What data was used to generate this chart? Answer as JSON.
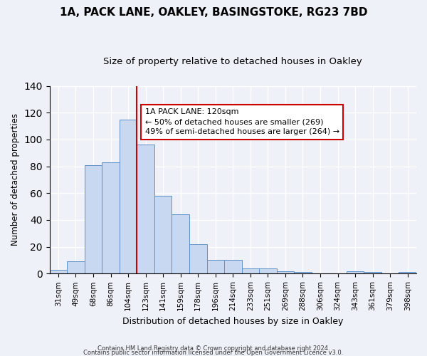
{
  "title": "1A, PACK LANE, OAKLEY, BASINGSTOKE, RG23 7BD",
  "subtitle": "Size of property relative to detached houses in Oakley",
  "xlabel": "Distribution of detached houses by size in Oakley",
  "ylabel": "Number of detached properties",
  "bar_labels": [
    "31sqm",
    "49sqm",
    "68sqm",
    "86sqm",
    "104sqm",
    "123sqm",
    "141sqm",
    "159sqm",
    "178sqm",
    "196sqm",
    "214sqm",
    "233sqm",
    "251sqm",
    "269sqm",
    "288sqm",
    "306sqm",
    "324sqm",
    "343sqm",
    "361sqm",
    "379sqm",
    "398sqm"
  ],
  "bar_values": [
    3,
    9,
    81,
    83,
    115,
    96,
    58,
    44,
    22,
    10,
    10,
    4,
    4,
    2,
    1,
    0,
    0,
    2,
    1,
    0,
    1
  ],
  "bar_color": "#c8d8f0",
  "bar_edge_color": "#6090c8",
  "vline_x": 4.5,
  "vline_color": "#cc0000",
  "ylim": [
    0,
    140
  ],
  "yticks": [
    0,
    20,
    40,
    60,
    80,
    100,
    120,
    140
  ],
  "annotation_title": "1A PACK LANE: 120sqm",
  "annotation_line1": "← 50% of detached houses are smaller (269)",
  "annotation_line2": "49% of semi-detached houses are larger (264) →",
  "annotation_box_facecolor": "#ffffff",
  "annotation_border_color": "#cc0000",
  "footer_line1": "Contains HM Land Registry data © Crown copyright and database right 2024.",
  "footer_line2": "Contains public sector information licensed under the Open Government Licence v3.0.",
  "background_color": "#eef2f8",
  "plot_background_color": "#eef2f8",
  "title_fontsize": 11,
  "subtitle_fontsize": 9.5
}
